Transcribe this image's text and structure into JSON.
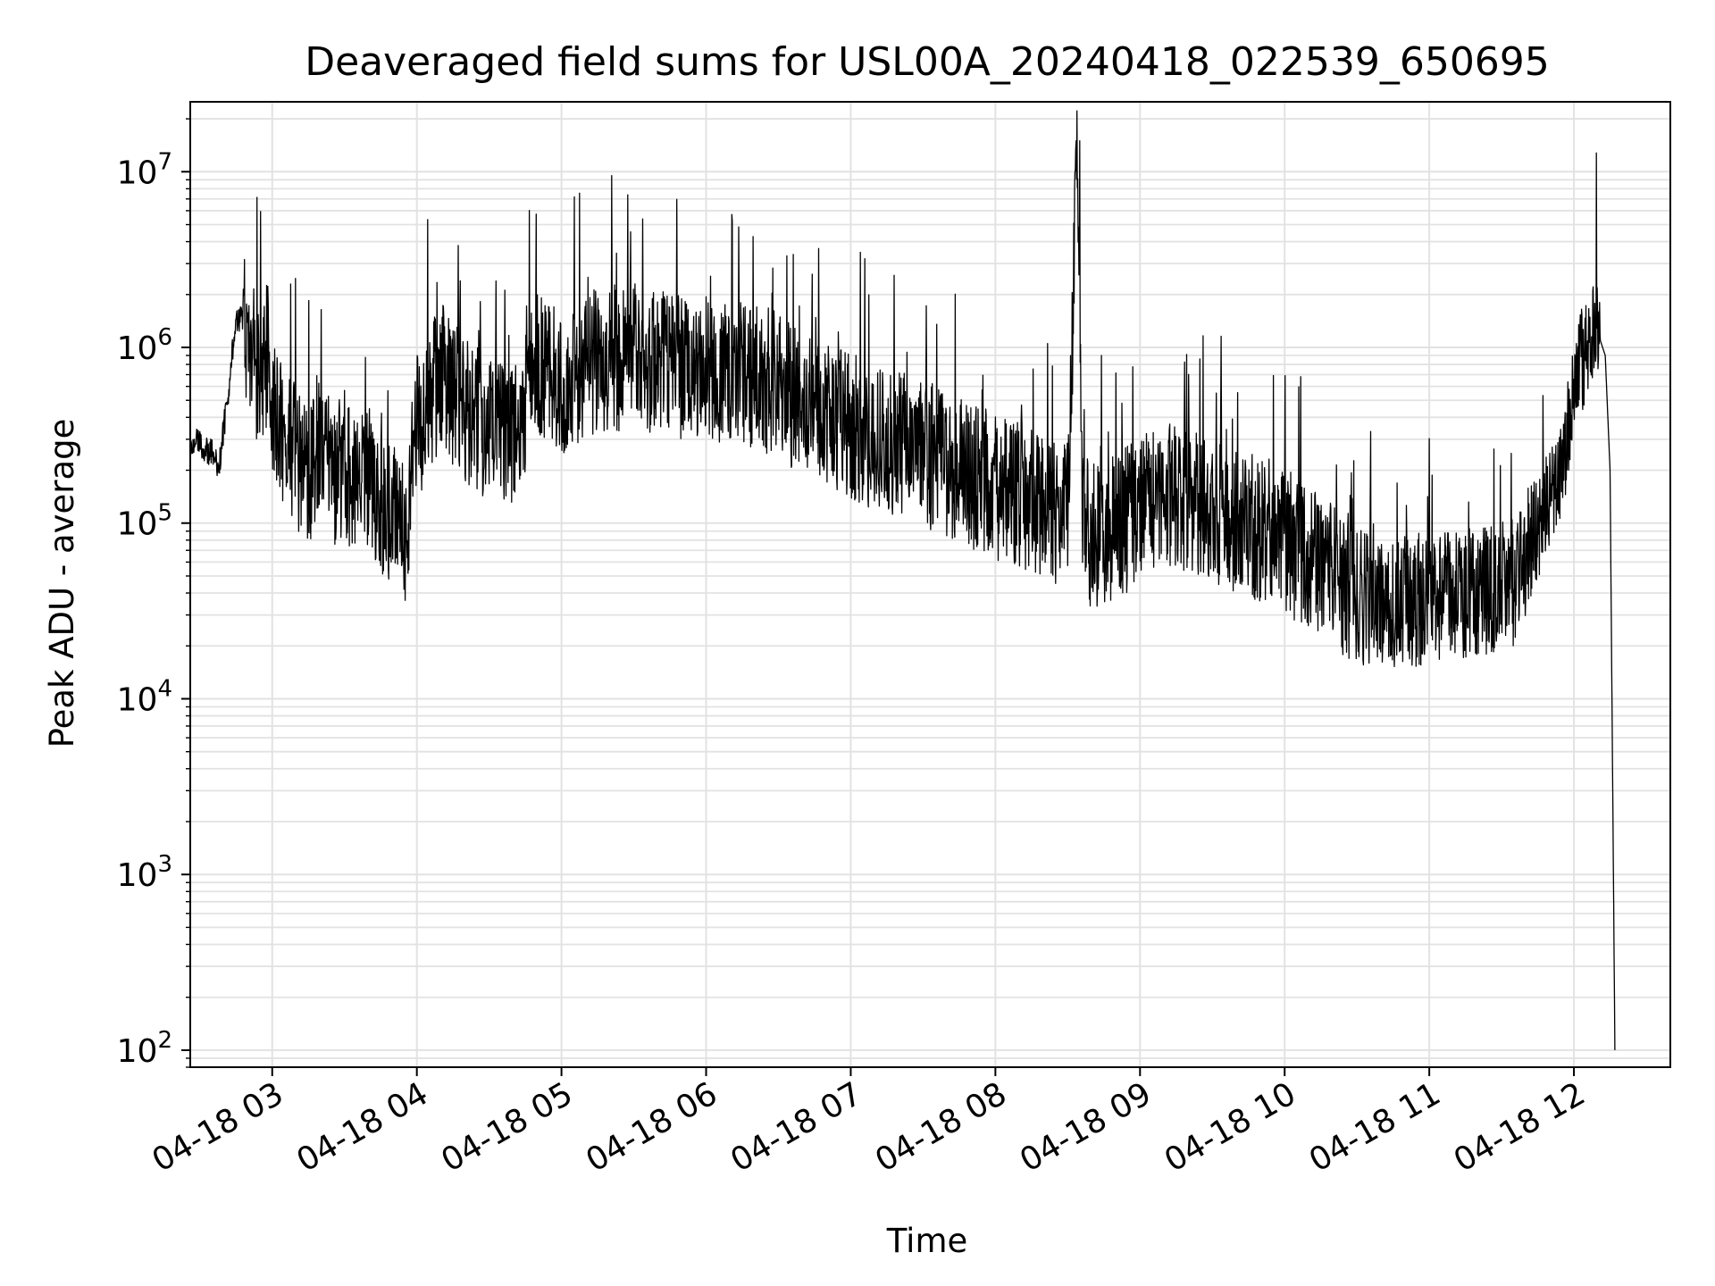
{
  "chart_data": {
    "type": "line",
    "title": "Deaveraged field sums for USL00A_20240418_022539_650695",
    "xlabel": "Time",
    "ylabel": "Peak ADU - average",
    "yscale": "log",
    "grid": true,
    "ylim": [
      80,
      25000000
    ],
    "xlim": [
      "2024-04-18 02:26",
      "2024-04-18 12:40"
    ],
    "x_ticks": [
      "04-18 03",
      "04-18 04",
      "04-18 05",
      "04-18 06",
      "04-18 07",
      "04-18 08",
      "04-18 09",
      "04-18 10",
      "04-18 11",
      "04-18 12"
    ],
    "y_ticks": [
      {
        "base": "10",
        "exp": "2",
        "value": 100
      },
      {
        "base": "10",
        "exp": "3",
        "value": 1000
      },
      {
        "base": "10",
        "exp": "4",
        "value": 10000
      },
      {
        "base": "10",
        "exp": "5",
        "value": 100000
      },
      {
        "base": "10",
        "exp": "6",
        "value": 1000000
      },
      {
        "base": "10",
        "exp": "7",
        "value": 10000000
      }
    ],
    "line_color": "#000000",
    "series": [
      {
        "x": [
          "2024-04-18 02:26",
          "2024-04-18 02:30",
          "2024-04-18 02:35",
          "2024-04-18 02:38",
          "2024-04-18 02:42",
          "2024-04-18 02:45",
          "2024-04-18 02:50",
          "2024-04-18 02:55",
          "2024-04-18 02:58",
          "2024-04-18 03:00",
          "2024-04-18 03:05",
          "2024-04-18 03:10",
          "2024-04-18 03:15",
          "2024-04-18 03:20",
          "2024-04-18 03:25",
          "2024-04-18 03:30",
          "2024-04-18 03:35",
          "2024-04-18 03:40",
          "2024-04-18 03:45",
          "2024-04-18 03:50",
          "2024-04-18 03:55",
          "2024-04-18 04:00",
          "2024-04-18 04:10",
          "2024-04-18 04:20",
          "2024-04-18 04:30",
          "2024-04-18 04:40",
          "2024-04-18 04:50",
          "2024-04-18 05:00",
          "2024-04-18 05:15",
          "2024-04-18 05:30",
          "2024-04-18 05:45",
          "2024-04-18 06:00",
          "2024-04-18 06:15",
          "2024-04-18 06:30",
          "2024-04-18 06:45",
          "2024-04-18 07:00",
          "2024-04-18 07:15",
          "2024-04-18 07:30",
          "2024-04-18 07:45",
          "2024-04-18 08:00",
          "2024-04-18 08:15",
          "2024-04-18 08:30",
          "2024-04-18 08:34",
          "2024-04-18 08:36",
          "2024-04-18 08:45",
          "2024-04-18 09:00",
          "2024-04-18 09:15",
          "2024-04-18 09:30",
          "2024-04-18 09:45",
          "2024-04-18 10:00",
          "2024-04-18 10:15",
          "2024-04-18 10:30",
          "2024-04-18 10:45",
          "2024-04-18 11:00",
          "2024-04-18 11:15",
          "2024-04-18 11:25",
          "2024-04-18 11:35",
          "2024-04-18 11:45",
          "2024-04-18 11:55",
          "2024-04-18 12:00",
          "2024-04-18 12:05",
          "2024-04-18 12:10",
          "2024-04-18 12:13",
          "2024-04-18 12:15",
          "2024-04-18 12:17"
        ],
        "y": [
          300000,
          280000,
          250000,
          210000,
          600000,
          1500000,
          1300000,
          600000,
          900000,
          500000,
          300000,
          250000,
          180000,
          350000,
          180000,
          220000,
          150000,
          200000,
          130000,
          110000,
          90000,
          350000,
          700000,
          450000,
          350000,
          300000,
          800000,
          600000,
          850000,
          900000,
          800000,
          750000,
          750000,
          600000,
          450000,
          350000,
          300000,
          250000,
          200000,
          160000,
          140000,
          110000,
          15000000,
          90000,
          85000,
          120000,
          150000,
          110000,
          100000,
          80000,
          55000,
          42000,
          36000,
          37000,
          40000,
          40000,
          45000,
          90000,
          200000,
          600000,
          1000000,
          1200000,
          900000,
          200000,
          100
        ]
      }
    ]
  }
}
